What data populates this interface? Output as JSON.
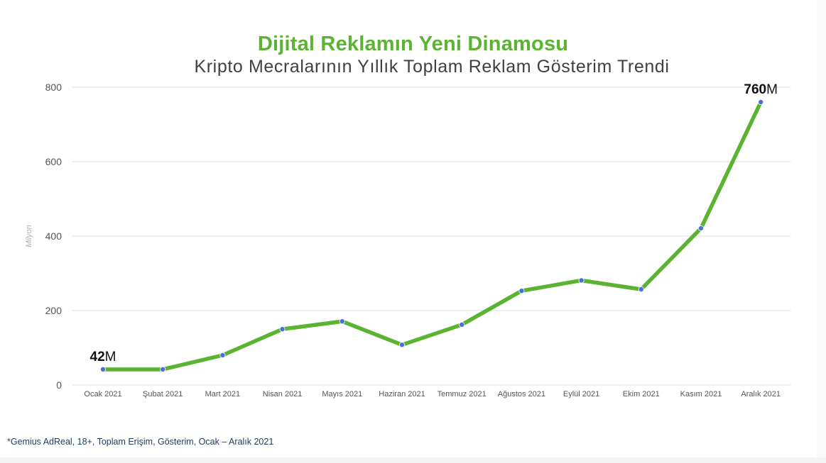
{
  "title": "Dijital Reklamın Yeni Dinamosu",
  "subtitle": "Kripto Mecralarının Yıllık Toplam Reklam Gösterim Trendi",
  "footnote": "*Gemius AdReal, 18+, Toplam Erişim, Gösterim, Ocak – Aralık 2021",
  "colors": {
    "title": "#5bb332",
    "line": "#5bb332",
    "marker": "#4a6fd6",
    "grid": "#dddddd"
  },
  "chart_data": {
    "type": "line",
    "title": "Dijital Reklamın Yeni Dinamosu",
    "subtitle": "Kripto Mecralarının Yıllık Toplam Reklam Gösterim Trendi",
    "xlabel": "",
    "ylabel": "Milyon",
    "ylim": [
      0,
      800
    ],
    "yticks": [
      0,
      200,
      400,
      600,
      800
    ],
    "grid": true,
    "categories": [
      "Ocak 2021",
      "Şubat 2021",
      "Mart 2021",
      "Nisan 2021",
      "Mayıs 2021",
      "Haziran 2021",
      "Temmuz 2021",
      "Ağustos 2021",
      "Eylül 2021",
      "Ekim 2021",
      "Kasım 2021",
      "Aralık 2021"
    ],
    "series": [
      {
        "values": [
          42,
          42,
          80,
          150,
          171,
          108,
          162,
          253,
          281,
          257,
          421,
          760
        ]
      }
    ],
    "annotations": [
      {
        "category": "Ocak 2021",
        "value_text": "42",
        "unit": "M"
      },
      {
        "category": "Aralık 2021",
        "value_text": "760",
        "unit": "M"
      }
    ]
  }
}
